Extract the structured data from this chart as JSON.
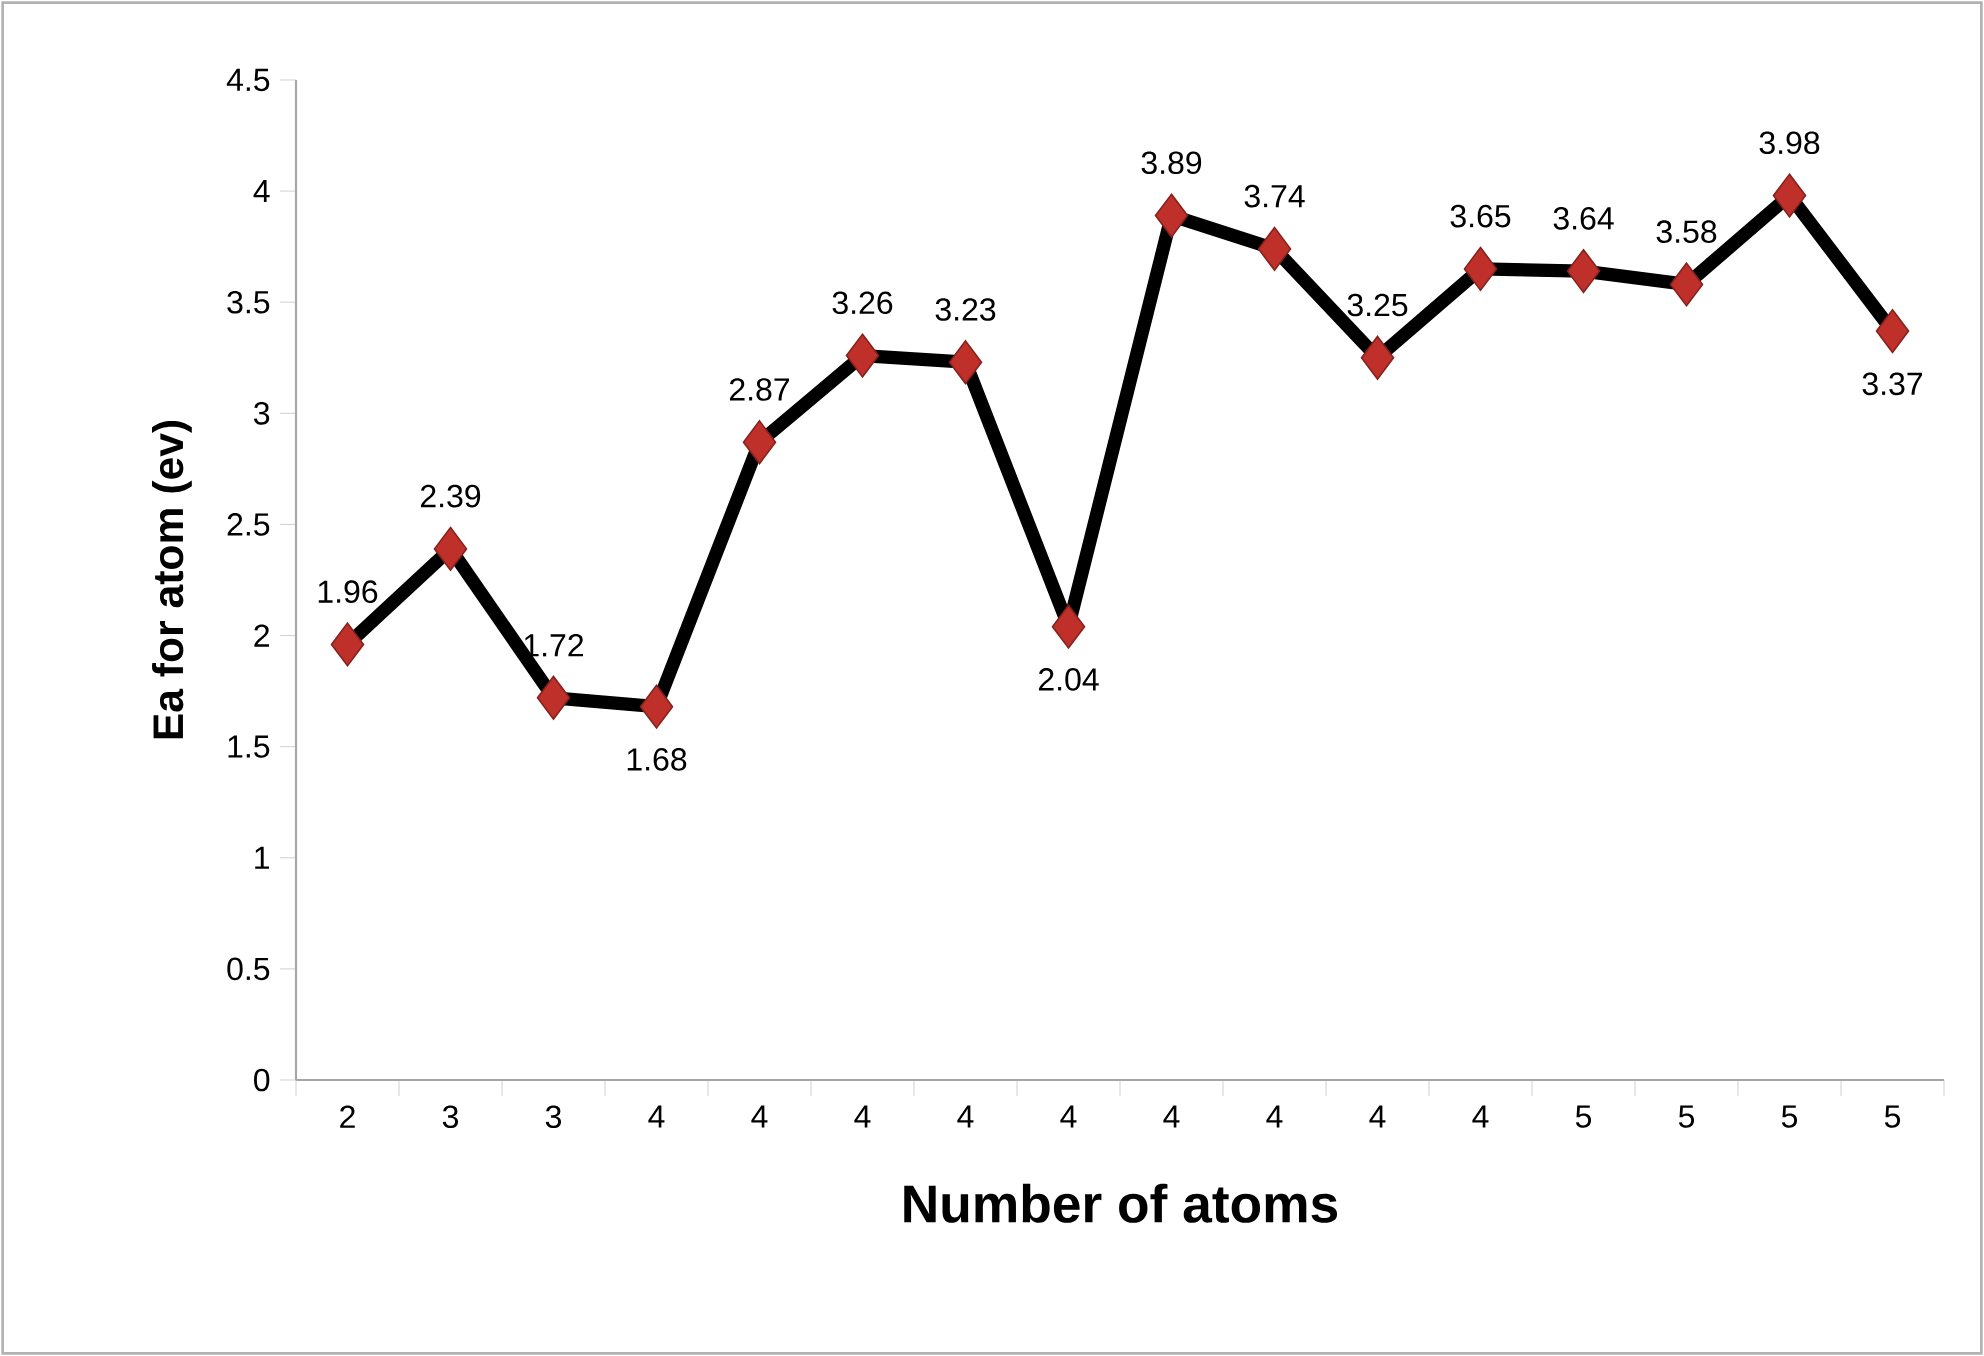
{
  "chart_data": {
    "type": "line",
    "xlabel": "Number of atoms",
    "ylabel": "Ea for atom (ev)",
    "categories": [
      "2",
      "3",
      "3",
      "4",
      "4",
      "4",
      "4",
      "4",
      "4",
      "4",
      "4",
      "4",
      "5",
      "5",
      "5",
      "5"
    ],
    "values": [
      1.96,
      2.39,
      1.72,
      1.68,
      2.87,
      3.26,
      3.23,
      2.04,
      3.89,
      3.74,
      3.25,
      3.65,
      3.64,
      3.58,
      3.98,
      3.37
    ],
    "color": "#000000",
    "colors": [
      "#c0302a",
      "#c0302a",
      "#c0302a",
      "#c0302a",
      "#c0302a",
      "#c0302a",
      "#c0302a",
      "#c0302a",
      "#c0302a",
      "#c0302a",
      "#c0302a",
      "#c0302a",
      "#c0302a",
      "#c0302a",
      "#c0302a",
      "#c0302a"
    ],
    "marker": "diamond",
    "line_style": "solid",
    "data_labels": true,
    "ylim": [
      0,
      4.5
    ],
    "yticks": [
      0,
      0.5,
      1,
      1.5,
      2,
      2.5,
      3,
      3.5,
      4,
      4.5
    ]
  }
}
